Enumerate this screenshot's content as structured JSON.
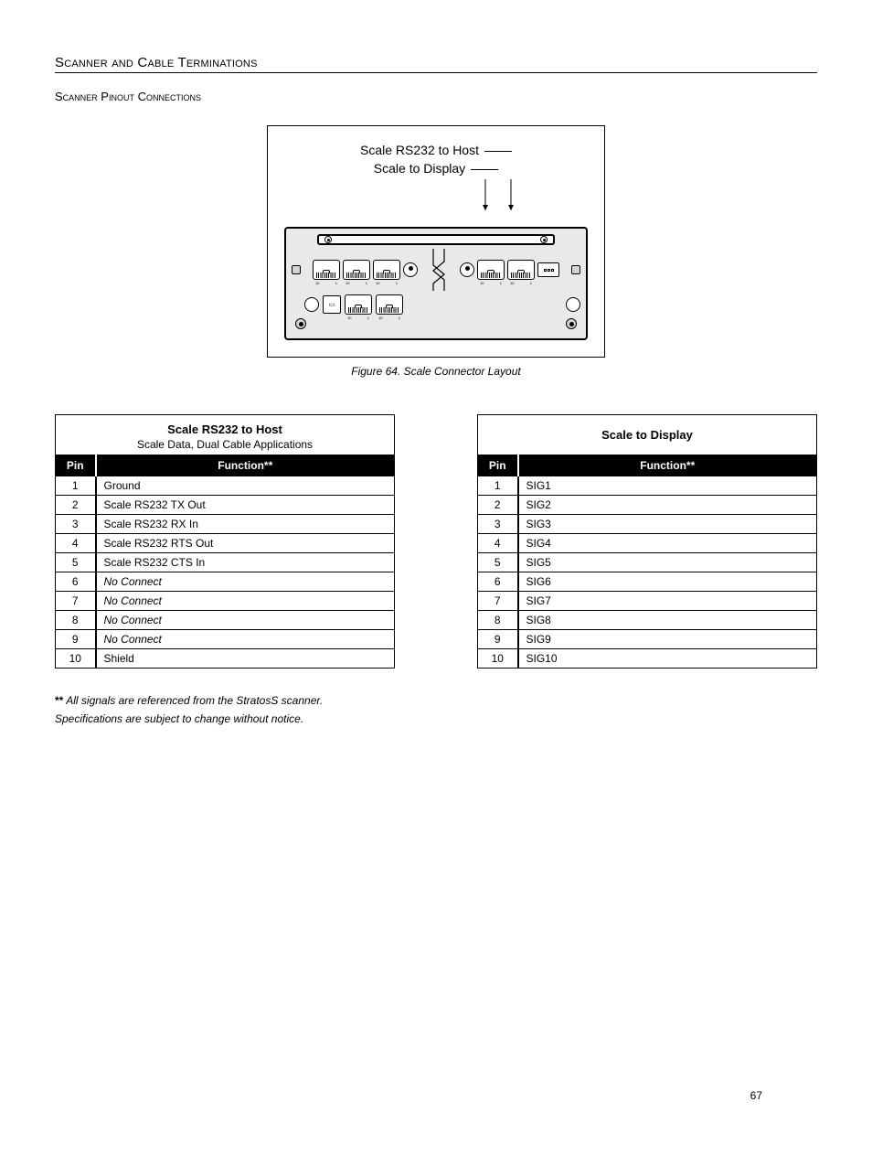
{
  "headings": {
    "section": "Scanner and Cable Terminations",
    "subsection": "Scanner Pinout Connections"
  },
  "figure": {
    "label_host": "Scale RS232 to Host",
    "label_display": "Scale to Display",
    "caption": "Figure 64. Scale Connector Layout",
    "jack_left": "10",
    "jack_right": "1"
  },
  "tables": {
    "host": {
      "title": "Scale RS232 to Host",
      "subtitle": "Scale Data, Dual Cable Applications",
      "col_pin": "Pin",
      "col_fn": "Function**",
      "rows": [
        {
          "pin": "1",
          "fn": "Ground",
          "italic": false
        },
        {
          "pin": "2",
          "fn": "Scale RS232 TX Out",
          "italic": false
        },
        {
          "pin": "3",
          "fn": "Scale RS232 RX In",
          "italic": false
        },
        {
          "pin": "4",
          "fn": "Scale RS232 RTS Out",
          "italic": false
        },
        {
          "pin": "5",
          "fn": "Scale RS232 CTS In",
          "italic": false
        },
        {
          "pin": "6",
          "fn": "No Connect",
          "italic": true
        },
        {
          "pin": "7",
          "fn": "No Connect",
          "italic": true
        },
        {
          "pin": "8",
          "fn": "No Connect",
          "italic": true
        },
        {
          "pin": "9",
          "fn": "No Connect",
          "italic": true
        },
        {
          "pin": "10",
          "fn": "Shield",
          "italic": false
        }
      ]
    },
    "display": {
      "title": "Scale to Display",
      "subtitle": "",
      "col_pin": "Pin",
      "col_fn": "Function**",
      "rows": [
        {
          "pin": "1",
          "fn": "SIG1",
          "italic": false
        },
        {
          "pin": "2",
          "fn": "SIG2",
          "italic": false
        },
        {
          "pin": "3",
          "fn": "SIG3",
          "italic": false
        },
        {
          "pin": "4",
          "fn": "SIG4",
          "italic": false
        },
        {
          "pin": "5",
          "fn": "SIG5",
          "italic": false
        },
        {
          "pin": "6",
          "fn": "SIG6",
          "italic": false
        },
        {
          "pin": "7",
          "fn": "SIG7",
          "italic": false
        },
        {
          "pin": "8",
          "fn": "SIG8",
          "italic": false
        },
        {
          "pin": "9",
          "fn": "SIG9",
          "italic": false
        },
        {
          "pin": "10",
          "fn": "SIG10",
          "italic": false
        }
      ]
    }
  },
  "footnotes": {
    "stars": "**",
    "ref": "All signals are referenced from the StratosS scanner.",
    "spec": "Specifications are subject to change without notice."
  },
  "page_number": "67"
}
